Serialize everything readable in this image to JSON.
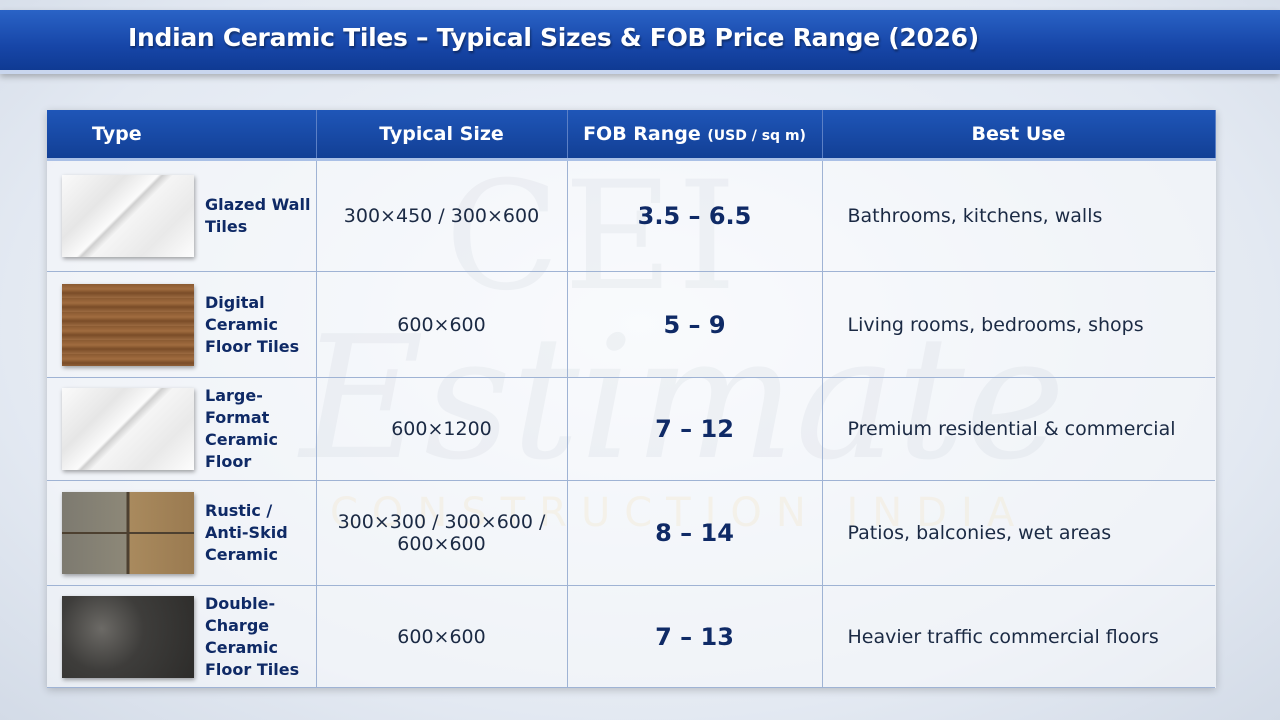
{
  "header": {
    "title": "Indian Ceramic Tiles – Typical Sizes & FOB Price Range (2026)"
  },
  "watermark": {
    "logo": "CEI",
    "script": "Estimate",
    "tagline": "CONSTRUCTION INDIA"
  },
  "table": {
    "columns": [
      {
        "text": "Type"
      },
      {
        "text": "Typical Size"
      },
      {
        "text": "FOB Range",
        "unit": "(USD / sq m)"
      },
      {
        "text": "Best Use"
      }
    ],
    "rows": [
      [
        "Glazed Wall Tiles",
        "300×450 / 300×600",
        "3.5 – 6.5",
        "Bathrooms, kitchens, walls"
      ],
      [
        "Digital Ceramic Floor Tiles",
        "600×600",
        "5 – 9",
        "Living rooms, bedrooms, shops"
      ],
      [
        "Large-Format Ceramic Floor",
        "600×1200",
        "7 – 12",
        "Premium residential & commercial"
      ],
      [
        "Rustic / Anti-Skid Ceramic",
        "300×300 / 300×600 / 600×600",
        "8 – 14",
        "Patios, balconies, wet areas"
      ],
      [
        "Double-Charge Ceramic Floor Tiles",
        "600×600",
        "7 – 13",
        "Heavier traffic commercial floors"
      ]
    ]
  }
}
